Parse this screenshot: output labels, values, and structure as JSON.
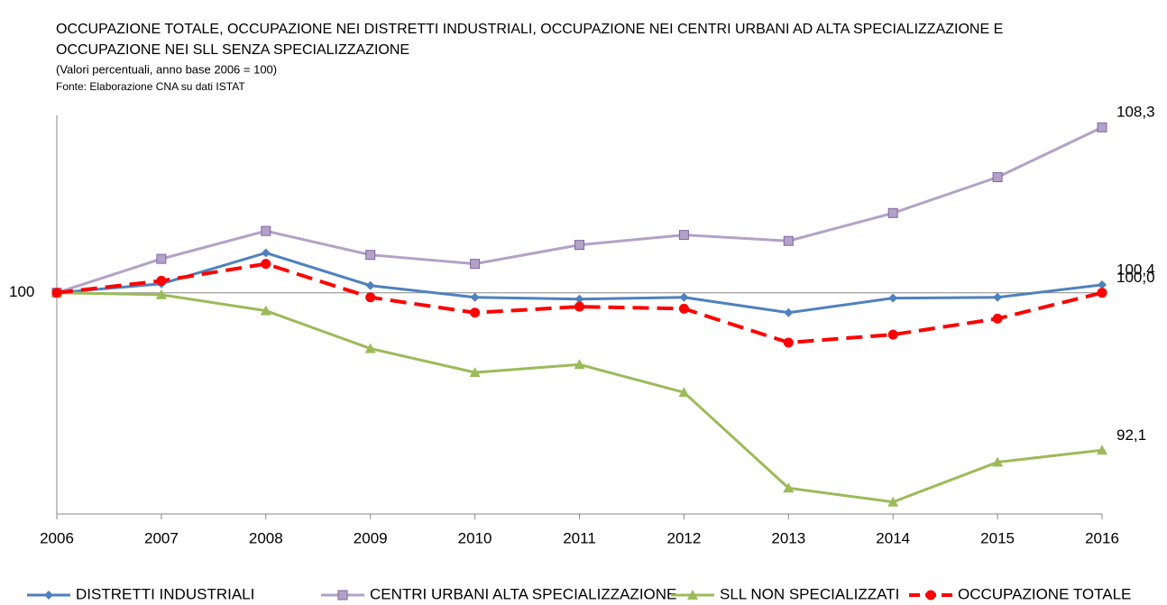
{
  "chart_data": {
    "type": "line",
    "title": [
      "OCCUPAZIONE TOTALE, OCCUPAZIONE  NEI DISTRETTI INDUSTRIALI, OCCUPAZIONE NEI CENTRI URBANI AD ALTA SPECIALIZZAZIONE E",
      "OCCUPAZIONE NEI SLL SENZA SPECIALIZZAZIONE"
    ],
    "subtitle": "(Valori percentuali, anno base 2006 = 100)",
    "source": "Fonte: Elaborazione CNA su dati ISTAT",
    "categories": [
      "2006",
      "2007",
      "2008",
      "2009",
      "2010",
      "2011",
      "2012",
      "2013",
      "2014",
      "2015",
      "2016"
    ],
    "series": [
      {
        "name": "DISTRETTI INDUSTRIALI",
        "color": "#4f81bd",
        "marker": "diamond",
        "dashed": false,
        "values": [
          100,
          100.45,
          102.0,
          100.36,
          99.77,
          99.68,
          99.77,
          99.0,
          99.73,
          99.77,
          100.4
        ],
        "value_labels": [
          null,
          null,
          null,
          null,
          null,
          null,
          null,
          null,
          null,
          null,
          "100,4"
        ]
      },
      {
        "name": "CENTRI URBANI ALTA SPECIALIZZAZIONE",
        "color": "#b3a2c7",
        "marker": "square",
        "dashed": false,
        "values": [
          100,
          101.7,
          103.1,
          101.9,
          101.45,
          102.4,
          102.9,
          102.6,
          104.0,
          105.8,
          108.3
        ],
        "value_labels": [
          null,
          null,
          null,
          null,
          null,
          null,
          null,
          null,
          null,
          null,
          "108,3"
        ]
      },
      {
        "name": "SLL NON SPECIALIZZATI",
        "color": "#9bbb59",
        "marker": "triangle",
        "dashed": false,
        "values": [
          100,
          99.9,
          99.1,
          97.2,
          96.0,
          96.4,
          95.0,
          90.2,
          89.5,
          91.5,
          92.1
        ],
        "value_labels": [
          null,
          null,
          null,
          null,
          null,
          null,
          null,
          null,
          null,
          null,
          "92,1"
        ]
      },
      {
        "name": "OCCUPAZIONE TOTALE",
        "color": "#ff0000",
        "marker": "circle",
        "dashed": true,
        "values": [
          100,
          100.6,
          101.45,
          99.77,
          99.0,
          99.3,
          99.2,
          97.5,
          97.9,
          98.7,
          100.0
        ],
        "value_labels": [
          null,
          null,
          null,
          null,
          null,
          null,
          null,
          null,
          null,
          null,
          "100,0"
        ]
      }
    ],
    "ylim": [
      88.9,
      108.9
    ],
    "yticks": [
      100
    ],
    "grid": true,
    "legend": "bottom"
  }
}
